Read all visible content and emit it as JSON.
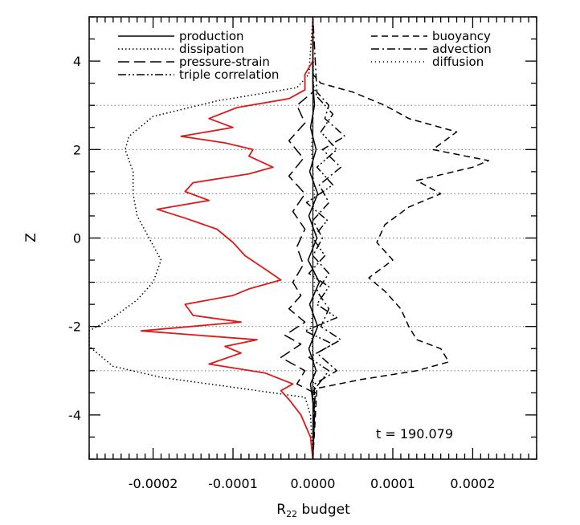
{
  "chart_data": {
    "type": "line",
    "title": "",
    "xlabel": "R",
    "xlabel_subscript": "22",
    "xlabel_suffix": " budget",
    "ylabel": "Z",
    "xlim": [
      -0.00028,
      0.00028
    ],
    "ylim": [
      -5,
      5
    ],
    "x_ticks": [
      -0.0002,
      -0.0001,
      0.0,
      0.0001,
      0.0002
    ],
    "x_tick_labels": [
      "-0.0002",
      "-0.0001",
      "0.0000",
      "0.0001",
      "0.0002"
    ],
    "y_ticks": [
      -4,
      -2,
      0,
      2,
      4
    ],
    "y_tick_labels": [
      "-4",
      "-2",
      "0",
      "2",
      "4"
    ],
    "grid": "dotted horizontal lines at z = -3, -2, -1, 0, 1, 2, 3",
    "grid_z": [
      -3,
      -2,
      -1,
      0,
      1,
      2,
      3
    ],
    "annotation": "t  =  190.079",
    "legend": [
      {
        "label": "production",
        "style": "solid",
        "color": "#000000",
        "position": "top-left"
      },
      {
        "label": "dissipation",
        "style": "dotted",
        "color": "#000000",
        "position": "top-left"
      },
      {
        "label": "pressure-strain",
        "style": "long-dash",
        "color": "#000000",
        "position": "top-left"
      },
      {
        "label": "triple correlation",
        "style": "dash-dot-dot",
        "color": "#000000",
        "position": "top-left"
      },
      {
        "label": "buoyancy",
        "style": "dashed",
        "color": "#000000",
        "position": "top-right"
      },
      {
        "label": "advection",
        "style": "dash-dot",
        "color": "#000000",
        "position": "top-right"
      },
      {
        "label": "diffusion",
        "style": "sparse-dotted",
        "color": "#000000",
        "position": "top-right"
      }
    ],
    "series": [
      {
        "name": "production",
        "style": "solid",
        "color": "#000000",
        "points": [
          [
            0,
            -5
          ],
          [
            2e-06,
            -4
          ],
          [
            -3e-06,
            -3.3
          ],
          [
            4e-06,
            -3
          ],
          [
            -5e-06,
            -2.5
          ],
          [
            6e-06,
            -2
          ],
          [
            -4e-06,
            -1.5
          ],
          [
            8e-06,
            -1
          ],
          [
            -6e-06,
            -0.5
          ],
          [
            5e-06,
            0
          ],
          [
            -5e-06,
            0.5
          ],
          [
            6e-06,
            1
          ],
          [
            -4e-06,
            1.5
          ],
          [
            4e-06,
            2
          ],
          [
            -3e-06,
            2.5
          ],
          [
            2e-06,
            3
          ],
          [
            0,
            3.5
          ],
          [
            0,
            5
          ]
        ]
      },
      {
        "name": "dissipation",
        "style": "dotted",
        "color": "#000000",
        "points": [
          [
            0,
            -5
          ],
          [
            -3e-06,
            -4
          ],
          [
            -1e-05,
            -3.6
          ],
          [
            -9e-05,
            -3.4
          ],
          [
            -0.00019,
            -3.15
          ],
          [
            -0.00025,
            -2.9
          ],
          [
            -0.00028,
            -2.45
          ],
          [
            -0.00028,
            -2.1
          ],
          [
            -0.00025,
            -1.8
          ],
          [
            -0.00022,
            -1.4
          ],
          [
            -0.0002,
            -1
          ],
          [
            -0.00019,
            -0.5
          ],
          [
            -0.000205,
            0
          ],
          [
            -0.00022,
            0.5
          ],
          [
            -0.000225,
            1
          ],
          [
            -0.000225,
            1.5
          ],
          [
            -0.00023,
            1.75
          ],
          [
            -0.000235,
            2
          ],
          [
            -0.00023,
            2.3
          ],
          [
            -0.0002,
            2.75
          ],
          [
            -0.00012,
            3.1
          ],
          [
            -2e-05,
            3.4
          ],
          [
            -5e-06,
            3.7
          ],
          [
            0,
            5
          ]
        ]
      },
      {
        "name": "pressure-strain",
        "style": "long-dash",
        "color": "#000000",
        "points": [
          [
            0,
            -5
          ],
          [
            2e-06,
            -3.5
          ],
          [
            -2e-05,
            -3.3
          ],
          [
            -1e-05,
            -3
          ],
          [
            -4e-05,
            -2.7
          ],
          [
            -1.5e-05,
            -2.4
          ],
          [
            -3.5e-05,
            -2.2
          ],
          [
            -1e-05,
            -1.9
          ],
          [
            -3e-05,
            -1.6
          ],
          [
            -1.5e-05,
            -1.3
          ],
          [
            -2.5e-05,
            -1
          ],
          [
            -1.2e-05,
            -0.6
          ],
          [
            -2e-05,
            -0.2
          ],
          [
            -1e-05,
            0.2
          ],
          [
            -2.5e-05,
            0.6
          ],
          [
            -1e-05,
            1
          ],
          [
            -3e-05,
            1.4
          ],
          [
            -1.2e-05,
            1.8
          ],
          [
            -3e-05,
            2.2
          ],
          [
            -1e-05,
            2.6
          ],
          [
            -2e-05,
            3
          ],
          [
            0,
            3.3
          ],
          [
            0,
            5
          ]
        ]
      },
      {
        "name": "triple correlation",
        "style": "dash-dot-dot",
        "color": "#000000",
        "points": [
          [
            0,
            -5
          ],
          [
            3e-06,
            -3.4
          ],
          [
            2e-05,
            -3
          ],
          [
            -5e-06,
            -2.7
          ],
          [
            2.5e-05,
            -2.4
          ],
          [
            -1e-05,
            -2.1
          ],
          [
            3e-05,
            -1.8
          ],
          [
            5e-06,
            -1.5
          ],
          [
            2e-05,
            -1.1
          ],
          [
            -5e-06,
            -0.8
          ],
          [
            1.5e-05,
            -0.4
          ],
          [
            0,
            0
          ],
          [
            1.8e-05,
            0.4
          ],
          [
            -8e-06,
            0.8
          ],
          [
            2.5e-05,
            1.2
          ],
          [
            5e-06,
            1.6
          ],
          [
            3e-05,
            2
          ],
          [
            1e-05,
            2.4
          ],
          [
            2.5e-05,
            2.8
          ],
          [
            5e-06,
            3.2
          ],
          [
            0,
            3.5
          ],
          [
            0,
            5
          ]
        ]
      },
      {
        "name": "buoyancy",
        "style": "dashed",
        "color": "#000000",
        "points": [
          [
            0,
            -5
          ],
          [
            5e-06,
            -3.4
          ],
          [
            6e-05,
            -3.2
          ],
          [
            0.00013,
            -3
          ],
          [
            0.00017,
            -2.8
          ],
          [
            0.00016,
            -2.5
          ],
          [
            0.00013,
            -2.3
          ],
          [
            0.00012,
            -2
          ],
          [
            0.00011,
            -1.6
          ],
          [
            9e-05,
            -1.2
          ],
          [
            7e-05,
            -0.9
          ],
          [
            0.0001,
            -0.5
          ],
          [
            8e-05,
            -0.1
          ],
          [
            9e-05,
            0.3
          ],
          [
            0.00012,
            0.7
          ],
          [
            0.00016,
            1
          ],
          [
            0.00013,
            1.3
          ],
          [
            0.0002,
            1.6
          ],
          [
            0.00022,
            1.75
          ],
          [
            0.00015,
            2
          ],
          [
            0.00018,
            2.4
          ],
          [
            0.00012,
            2.7
          ],
          [
            9e-05,
            3
          ],
          [
            5e-05,
            3.3
          ],
          [
            1e-05,
            3.5
          ],
          [
            0,
            3.7
          ],
          [
            0,
            5
          ]
        ]
      },
      {
        "name": "advection",
        "style": "dash-dot",
        "color": "#000000",
        "points": [
          [
            0,
            -5
          ],
          [
            2e-06,
            -3.3
          ],
          [
            3e-05,
            -3
          ],
          [
            5e-06,
            -2.6
          ],
          [
            3.5e-05,
            -2.3
          ],
          [
            1e-05,
            -2
          ],
          [
            2e-05,
            -1.6
          ],
          [
            5e-06,
            -1.2
          ],
          [
            2e-05,
            -0.8
          ],
          [
            0,
            -0.4
          ],
          [
            1.2e-05,
            0
          ],
          [
            0,
            0.4
          ],
          [
            2e-05,
            0.8
          ],
          [
            8e-06,
            1.2
          ],
          [
            3.5e-05,
            1.6
          ],
          [
            1.2e-05,
            2
          ],
          [
            4e-05,
            2.3
          ],
          [
            1.5e-05,
            2.7
          ],
          [
            2e-05,
            3
          ],
          [
            5e-06,
            3.3
          ],
          [
            0,
            5
          ]
        ]
      },
      {
        "name": "diffusion",
        "style": "sparse-dotted",
        "color": "#000000",
        "points": [
          [
            0,
            -5
          ],
          [
            1e-06,
            -3
          ],
          [
            -2e-06,
            -2
          ],
          [
            2e-06,
            -1
          ],
          [
            -2e-06,
            0
          ],
          [
            2e-06,
            1
          ],
          [
            -2e-06,
            2
          ],
          [
            1e-06,
            3
          ],
          [
            0,
            5
          ]
        ]
      },
      {
        "name": "",
        "style": "solid",
        "color": "#dd1a1a",
        "points": [
          [
            0,
            -5
          ],
          [
            -3e-06,
            -4.5
          ],
          [
            -1.5e-05,
            -4
          ],
          [
            -3e-05,
            -3.65
          ],
          [
            -4e-05,
            -3.45
          ],
          [
            -2.5e-05,
            -3.3
          ],
          [
            -6e-05,
            -3.05
          ],
          [
            -0.00013,
            -2.85
          ],
          [
            -9e-05,
            -2.6
          ],
          [
            -0.00011,
            -2.45
          ],
          [
            -7e-05,
            -2.3
          ],
          [
            -0.000215,
            -2.1
          ],
          [
            -9e-05,
            -1.9
          ],
          [
            -0.00015,
            -1.75
          ],
          [
            -0.00016,
            -1.5
          ],
          [
            -0.0001,
            -1.3
          ],
          [
            -8e-05,
            -1.15
          ],
          [
            -4e-05,
            -0.95
          ],
          [
            -6e-05,
            -0.7
          ],
          [
            -8.5e-05,
            -0.4
          ],
          [
            -0.0001,
            -0.1
          ],
          [
            -0.00012,
            0.2
          ],
          [
            -0.00016,
            0.45
          ],
          [
            -0.000195,
            0.65
          ],
          [
            -0.00013,
            0.85
          ],
          [
            -0.00016,
            1.05
          ],
          [
            -0.00015,
            1.25
          ],
          [
            -8e-05,
            1.45
          ],
          [
            -5e-05,
            1.6
          ],
          [
            -8e-05,
            1.85
          ],
          [
            -7.5e-05,
            2
          ],
          [
            -0.00011,
            2.15
          ],
          [
            -0.000165,
            2.3
          ],
          [
            -0.0001,
            2.5
          ],
          [
            -0.00013,
            2.7
          ],
          [
            -9.5e-05,
            2.95
          ],
          [
            -3e-05,
            3.15
          ],
          [
            -1e-05,
            3.35
          ],
          [
            -1e-05,
            3.7
          ],
          [
            0,
            4
          ],
          [
            0,
            5
          ]
        ]
      }
    ]
  }
}
